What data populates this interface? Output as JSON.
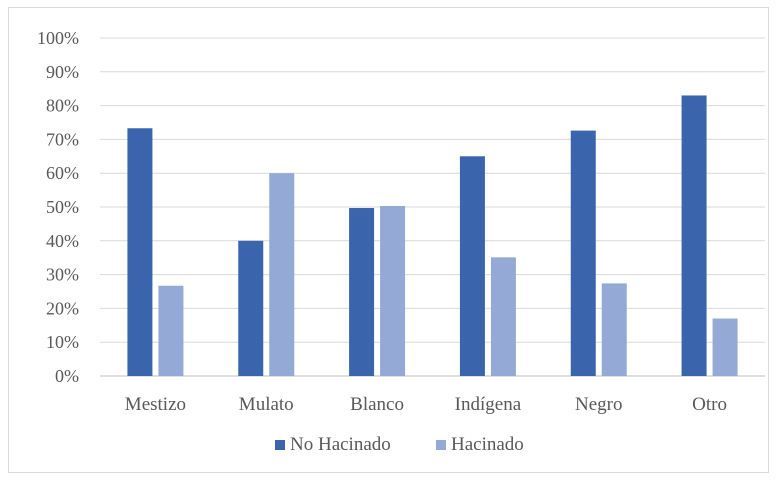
{
  "chart_data": {
    "type": "bar",
    "categories": [
      "Mestizo",
      "Mulato",
      "Blanco",
      "Indígena",
      "Negro",
      "Otro"
    ],
    "series": [
      {
        "name": "No Hacinado",
        "color": "#3a64ac",
        "values": [
          73.3,
          40.0,
          49.7,
          65.0,
          72.6,
          83.0
        ]
      },
      {
        "name": "Hacinado",
        "color": "#94a9d6",
        "values": [
          26.7,
          60.0,
          50.3,
          35.1,
          27.4,
          17.0
        ]
      }
    ],
    "ylim": [
      0,
      100
    ],
    "yticks": [
      "0%",
      "10%",
      "20%",
      "30%",
      "40%",
      "50%",
      "60%",
      "70%",
      "80%",
      "90%",
      "100%"
    ],
    "gridlines": true,
    "legend": "bottom",
    "title": "",
    "xlabel": "",
    "ylabel": ""
  }
}
